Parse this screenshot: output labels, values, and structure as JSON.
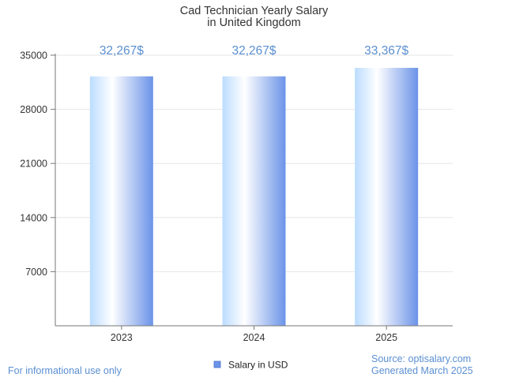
{
  "chart_data": {
    "type": "bar",
    "title": "Cad Technician Yearly Salary",
    "subtitle": "in United Kingdom",
    "categories": [
      "2023",
      "2024",
      "2025"
    ],
    "series": [
      {
        "name": "Salary in USD",
        "values": [
          32267,
          32267,
          33367
        ],
        "labels": [
          "32,267$",
          "32,267$",
          "33,367$"
        ]
      }
    ],
    "y_ticks": [
      "7000",
      "14000",
      "21000",
      "28000",
      "35000"
    ],
    "ylim": [
      0,
      35000
    ],
    "grid": true,
    "legend": "bottom-center",
    "colors": {
      "bar_light": "#ffffff",
      "bar_mid": "#bcdcff",
      "bar_dark": "#6b93e8",
      "value_label": "#5b8fd1",
      "title": "#333333",
      "axis_text": "#333333",
      "grid": "#e6e6e6",
      "axis_line": "#777777",
      "legend_swatch": "#6b93e8"
    }
  },
  "footer": {
    "disclaimer": "For informational use only",
    "source": "Source: optisalary.com",
    "generated": "Generated March 2025"
  }
}
